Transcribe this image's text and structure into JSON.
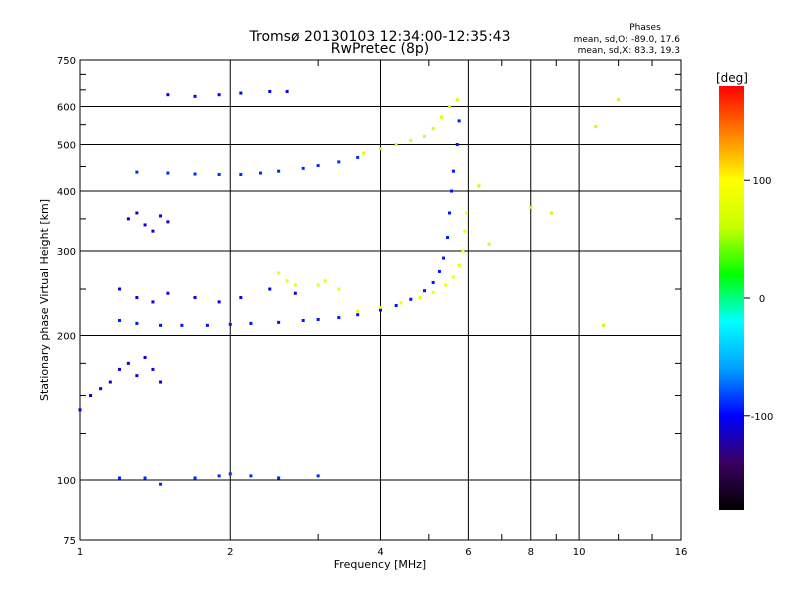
{
  "chart_data": {
    "type": "scatter",
    "title": "Tromsø 20130103 12:34:00-12:35:43",
    "subtitle": "RwPretec (8p)",
    "stats_title": "Phases",
    "stats_lines": [
      "mean, sd,O: -89.0, 17.6",
      "mean, sd,X: 83.3, 19.3"
    ],
    "xlabel": "Frequency [MHz]",
    "ylabel": "Stationary phase Virtual Height [km]",
    "xscale": "log",
    "yscale": "log",
    "xlim": [
      1,
      16
    ],
    "ylim": [
      75,
      750
    ],
    "x_ticks": [
      1,
      2,
      4,
      6,
      8,
      10,
      16
    ],
    "y_ticks": [
      75,
      100,
      200,
      300,
      400,
      500,
      600,
      750
    ],
    "x_gridlines": [
      2,
      4,
      6,
      8,
      10
    ],
    "y_gridlines": [
      100,
      200,
      300,
      400,
      500,
      600
    ],
    "grid": true,
    "colorbar": {
      "label": "[deg]",
      "range": [
        -180,
        180
      ],
      "ticks": [
        100,
        0,
        -100
      ],
      "colors": [
        "#000000",
        "#3a0060",
        "#0000ff",
        "#00a0ff",
        "#00ffff",
        "#00ff00",
        "#c8ff00",
        "#ffff00",
        "#ff8000",
        "#ff0000"
      ]
    },
    "series": [
      {
        "phase": -95,
        "points": [
          [
            1.2,
            215
          ],
          [
            1.3,
            212
          ],
          [
            1.45,
            210
          ],
          [
            1.6,
            210
          ],
          [
            1.8,
            210
          ],
          [
            2.0,
            211
          ],
          [
            2.2,
            212
          ],
          [
            2.5,
            213
          ],
          [
            2.8,
            215
          ],
          [
            3.0,
            216
          ],
          [
            3.3,
            218
          ],
          [
            3.6,
            221
          ],
          [
            4.0,
            226
          ],
          [
            4.3,
            231
          ],
          [
            4.6,
            238
          ],
          [
            4.9,
            248
          ],
          [
            5.1,
            258
          ],
          [
            5.25,
            272
          ],
          [
            5.35,
            290
          ],
          [
            5.45,
            320
          ],
          [
            5.5,
            360
          ],
          [
            5.55,
            400
          ],
          [
            5.6,
            440
          ],
          [
            5.7,
            500
          ],
          [
            5.75,
            560
          ]
        ]
      },
      {
        "phase": 90,
        "points": [
          [
            3.6,
            225
          ],
          [
            4.0,
            229
          ],
          [
            4.4,
            234
          ],
          [
            4.8,
            240
          ],
          [
            5.1,
            246
          ],
          [
            5.4,
            255
          ],
          [
            5.6,
            265
          ],
          [
            5.75,
            280
          ],
          [
            5.85,
            300
          ],
          [
            5.9,
            330
          ],
          [
            5.95,
            360
          ]
        ]
      },
      {
        "phase": -90,
        "points": [
          [
            1.3,
            438
          ],
          [
            1.5,
            436
          ],
          [
            1.7,
            434
          ],
          [
            1.9,
            433
          ],
          [
            2.1,
            433
          ],
          [
            2.3,
            436
          ],
          [
            2.5,
            440
          ],
          [
            2.8,
            446
          ],
          [
            3.0,
            452
          ],
          [
            3.3,
            460
          ],
          [
            3.6,
            470
          ]
        ]
      },
      {
        "phase": 70,
        "points": [
          [
            3.7,
            480
          ],
          [
            4.0,
            490
          ],
          [
            4.3,
            500
          ],
          [
            4.6,
            510
          ],
          [
            4.9,
            520
          ],
          [
            5.1,
            540
          ],
          [
            5.3,
            570
          ],
          [
            5.5,
            600
          ],
          [
            5.7,
            620
          ]
        ]
      },
      {
        "phase": -110,
        "points": [
          [
            1.25,
            350
          ],
          [
            1.3,
            360
          ],
          [
            1.35,
            340
          ],
          [
            1.4,
            330
          ],
          [
            1.45,
            355
          ],
          [
            1.5,
            345
          ]
        ]
      },
      {
        "phase": -100,
        "points": [
          [
            1.5,
            635
          ],
          [
            1.7,
            630
          ],
          [
            1.9,
            635
          ],
          [
            2.1,
            640
          ],
          [
            2.4,
            645
          ],
          [
            2.6,
            645
          ]
        ]
      },
      {
        "phase": -90,
        "points": [
          [
            1.2,
            101
          ],
          [
            1.35,
            101
          ],
          [
            1.45,
            98
          ],
          [
            1.7,
            101
          ],
          [
            1.9,
            102
          ],
          [
            2.0,
            103
          ],
          [
            2.2,
            102
          ],
          [
            2.5,
            101
          ],
          [
            3.0,
            102
          ]
        ]
      },
      {
        "phase": -110,
        "points": [
          [
            1.0,
            140
          ],
          [
            1.05,
            150
          ],
          [
            1.1,
            155
          ],
          [
            1.15,
            160
          ],
          [
            1.2,
            170
          ],
          [
            1.25,
            175
          ],
          [
            1.3,
            165
          ],
          [
            1.35,
            180
          ],
          [
            1.4,
            170
          ],
          [
            1.45,
            160
          ]
        ]
      },
      {
        "phase": -105,
        "points": [
          [
            1.2,
            250
          ],
          [
            1.3,
            240
          ],
          [
            1.4,
            235
          ],
          [
            1.5,
            245
          ],
          [
            1.7,
            240
          ],
          [
            1.9,
            235
          ],
          [
            2.1,
            240
          ],
          [
            2.4,
            250
          ],
          [
            2.7,
            245
          ]
        ]
      },
      {
        "phase": 85,
        "points": [
          [
            2.5,
            270
          ],
          [
            2.6,
            260
          ],
          [
            2.7,
            255
          ],
          [
            3.0,
            255
          ],
          [
            3.1,
            260
          ],
          [
            3.3,
            250
          ]
        ]
      },
      {
        "phase": 60,
        "points": [
          [
            8.8,
            360
          ],
          [
            10.8,
            545
          ],
          [
            11.2,
            210
          ],
          [
            12.0,
            620
          ],
          [
            6.3,
            410
          ],
          [
            6.6,
            310
          ],
          [
            8.0,
            370
          ]
        ]
      }
    ]
  }
}
